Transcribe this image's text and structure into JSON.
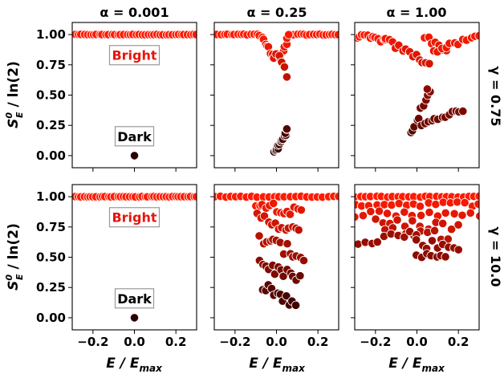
{
  "figure": {
    "column_titles": [
      "α = 0.001",
      "α = 0.25",
      "α = 1.00"
    ],
    "row_titles": [
      "γ = 0.75",
      "γ = 10.0"
    ],
    "ylabel_main": "S",
    "ylabel_sup": "0",
    "ylabel_sub": "E",
    "ylabel_tail": " / ln(2)",
    "xlabel_main": "E / E",
    "xlabel_sub": "max"
  },
  "colors": {
    "bright_text": "#e8140b",
    "dark_text": "#000000",
    "marker_bright": "#ff1a00",
    "marker_dark": "#2a0000",
    "marker_edge": "#ffffff"
  },
  "annotations": {
    "bright": "Bright",
    "dark": "Dark"
  },
  "chart_data": [
    {
      "type": "scatter",
      "row": 0,
      "col": 0,
      "title": "α = 0.001",
      "xlim": [
        -0.3,
        0.3
      ],
      "ylim": [
        -0.1,
        1.1
      ],
      "xticks": [
        -0.2,
        0.0,
        0.2
      ],
      "yticks": [
        0.0,
        0.25,
        0.5,
        0.75,
        1.0
      ],
      "xticklabels": [
        "−0.2",
        "0.0",
        "0.2"
      ],
      "yticklabels": [
        "0.00",
        "0.25",
        "0.50",
        "0.75",
        "1.00"
      ],
      "show_xticklabels": false,
      "show_yticklabels": true,
      "bands": [
        {
          "x": [
            -0.3,
            0.3
          ],
          "y": [
            1.0,
            1.0
          ],
          "count": 42,
          "spread": 0.002,
          "c": [
            1.0,
            1.0
          ]
        }
      ],
      "points": [
        {
          "x": 0.0,
          "y": 0.0,
          "c": 0.0
        }
      ],
      "labels_text": {
        "bright": {
          "x": 0.0,
          "y": 0.83
        },
        "dark": {
          "x": 0.0,
          "y": 0.16
        }
      }
    },
    {
      "type": "scatter",
      "row": 0,
      "col": 1,
      "title": "α = 0.25",
      "xlim": [
        -0.3,
        0.3
      ],
      "ylim": [
        -0.1,
        1.1
      ],
      "xticks": [
        -0.2,
        0.0,
        0.2
      ],
      "yticks": [
        0.0,
        0.25,
        0.5,
        0.75,
        1.0
      ],
      "xticklabels": [
        "−0.2",
        "0.0",
        "0.2"
      ],
      "yticklabels": [
        "0.00",
        "0.25",
        "0.50",
        "0.75",
        "1.00"
      ],
      "show_xticklabels": false,
      "show_yticklabels": false,
      "bands": [
        {
          "x": [
            -0.3,
            -0.09
          ],
          "y": [
            1.0,
            1.0
          ],
          "count": 14,
          "spread": 0.004,
          "c": [
            1.0,
            1.0
          ]
        },
        {
          "x": [
            0.07,
            0.3
          ],
          "y": [
            1.0,
            1.0
          ],
          "count": 16,
          "spread": 0.004,
          "c": [
            1.0,
            1.0
          ]
        },
        {
          "x": [
            -0.08,
            -0.01
          ],
          "y": [
            0.99,
            0.82
          ],
          "count": 9,
          "spread": 0.02,
          "c": [
            0.98,
            0.85
          ]
        },
        {
          "x": [
            0.02,
            0.06
          ],
          "y": [
            0.82,
            0.98
          ],
          "count": 7,
          "spread": 0.02,
          "c": [
            0.85,
            0.98
          ]
        },
        {
          "x": [
            0.0,
            0.04
          ],
          "y": [
            0.85,
            0.72
          ],
          "count": 4,
          "spread": 0.02,
          "c": [
            0.85,
            0.75
          ]
        },
        {
          "x": [
            -0.01,
            0.05
          ],
          "y": [
            0.03,
            0.2
          ],
          "count": 16,
          "spread": 0.02,
          "c": [
            0.05,
            0.15
          ]
        }
      ],
      "points": [
        {
          "x": 0.05,
          "y": 0.65,
          "c": 0.7
        },
        {
          "x": 0.05,
          "y": 0.22,
          "c": 0.2
        }
      ],
      "labels_text": null
    },
    {
      "type": "scatter",
      "row": 0,
      "col": 2,
      "title": "α = 1.00",
      "xlim": [
        -0.3,
        0.3
      ],
      "ylim": [
        -0.1,
        1.1
      ],
      "xticks": [
        -0.2,
        0.0,
        0.2
      ],
      "yticks": [
        0.0,
        0.25,
        0.5,
        0.75,
        1.0
      ],
      "xticklabels": [
        "−0.2",
        "0.0",
        "0.2"
      ],
      "yticklabels": [
        "0.00",
        "0.25",
        "0.50",
        "0.75",
        "1.00"
      ],
      "show_xticklabels": false,
      "show_yticklabels": false,
      "bands": [
        {
          "x": [
            -0.29,
            -0.15
          ],
          "y": [
            0.99,
            0.95
          ],
          "count": 12,
          "spread": 0.02,
          "c": [
            0.98,
            0.95
          ]
        },
        {
          "x": [
            -0.15,
            0.06
          ],
          "y": [
            0.95,
            0.76
          ],
          "count": 14,
          "spread": 0.025,
          "c": [
            0.92,
            0.8
          ]
        },
        {
          "x": [
            0.04,
            0.14
          ],
          "y": [
            0.98,
            0.87
          ],
          "count": 7,
          "spread": 0.02,
          "c": [
            0.95,
            0.88
          ]
        },
        {
          "x": [
            0.08,
            0.3
          ],
          "y": [
            0.86,
            0.99
          ],
          "count": 12,
          "spread": 0.02,
          "c": [
            0.9,
            0.98
          ]
        },
        {
          "x": [
            -0.03,
            0.06
          ],
          "y": [
            0.18,
            0.52
          ],
          "count": 10,
          "spread": 0.025,
          "c": [
            0.2,
            0.45
          ]
        },
        {
          "x": [
            0.02,
            0.22
          ],
          "y": [
            0.26,
            0.38
          ],
          "count": 13,
          "spread": 0.015,
          "c": [
            0.3,
            0.38
          ]
        }
      ],
      "points": [
        {
          "x": 0.05,
          "y": 0.55,
          "c": 0.45
        }
      ],
      "labels_text": null
    },
    {
      "type": "scatter",
      "row": 1,
      "col": 0,
      "title": "",
      "xlim": [
        -0.3,
        0.3
      ],
      "ylim": [
        -0.1,
        1.1
      ],
      "xticks": [
        -0.2,
        0.0,
        0.2
      ],
      "yticks": [
        0.0,
        0.25,
        0.5,
        0.75,
        1.0
      ],
      "xticklabels": [
        "−0.2",
        "0.0",
        "0.2"
      ],
      "yticklabels": [
        "0.00",
        "0.25",
        "0.50",
        "0.75",
        "1.00"
      ],
      "show_xticklabels": true,
      "show_yticklabels": true,
      "bands": [
        {
          "x": [
            -0.3,
            0.3
          ],
          "y": [
            1.0,
            1.0
          ],
          "count": 42,
          "spread": 0.002,
          "c": [
            1.0,
            1.0
          ]
        }
      ],
      "points": [
        {
          "x": 0.0,
          "y": 0.0,
          "c": 0.0
        }
      ],
      "labels_text": {
        "bright": {
          "x": 0.0,
          "y": 0.83
        },
        "dark": {
          "x": 0.0,
          "y": 0.16
        }
      }
    },
    {
      "type": "scatter",
      "row": 1,
      "col": 1,
      "title": "",
      "xlim": [
        -0.3,
        0.3
      ],
      "ylim": [
        -0.1,
        1.1
      ],
      "xticks": [
        -0.2,
        0.0,
        0.2
      ],
      "yticks": [
        0.0,
        0.25,
        0.5,
        0.75,
        1.0
      ],
      "xticklabels": [
        "−0.2",
        "0.0",
        "0.2"
      ],
      "yticklabels": [
        "0.00",
        "0.25",
        "0.50",
        "0.75",
        "1.00"
      ],
      "show_xticklabels": true,
      "show_yticklabels": false,
      "bands": [
        {
          "x": [
            -0.3,
            0.3
          ],
          "y": [
            1.0,
            1.0
          ],
          "count": 24,
          "spread": 0.004,
          "c": [
            1.0,
            1.0
          ]
        },
        {
          "x": [
            -0.1,
            0.12
          ],
          "y": [
            0.96,
            0.86
          ],
          "count": 14,
          "spread": 0.04,
          "c": [
            0.95,
            0.85
          ]
        },
        {
          "x": [
            -0.09,
            0.11
          ],
          "y": [
            0.84,
            0.7
          ],
          "count": 13,
          "spread": 0.04,
          "c": [
            0.82,
            0.7
          ]
        },
        {
          "x": [
            -0.08,
            0.13
          ],
          "y": [
            0.66,
            0.5
          ],
          "count": 14,
          "spread": 0.05,
          "c": [
            0.66,
            0.5
          ]
        },
        {
          "x": [
            -0.08,
            0.11
          ],
          "y": [
            0.46,
            0.3
          ],
          "count": 14,
          "spread": 0.05,
          "c": [
            0.45,
            0.3
          ]
        },
        {
          "x": [
            -0.07,
            0.09
          ],
          "y": [
            0.28,
            0.08
          ],
          "count": 12,
          "spread": 0.05,
          "c": [
            0.25,
            0.1
          ]
        }
      ],
      "points": [],
      "labels_text": null
    },
    {
      "type": "scatter",
      "row": 1,
      "col": 2,
      "title": "",
      "xlim": [
        -0.3,
        0.3
      ],
      "ylim": [
        -0.1,
        1.1
      ],
      "xticks": [
        -0.2,
        0.0,
        0.2
      ],
      "yticks": [
        0.0,
        0.25,
        0.5,
        0.75,
        1.0
      ],
      "xticklabels": [
        "−0.2",
        "0.0",
        "0.2"
      ],
      "yticklabels": [
        "0.00",
        "0.25",
        "0.50",
        "0.75",
        "1.00"
      ],
      "show_xticklabels": true,
      "show_yticklabels": false,
      "bands": [
        {
          "x": [
            -0.3,
            0.3
          ],
          "y": [
            1.0,
            1.0
          ],
          "count": 24,
          "spread": 0.004,
          "c": [
            1.0,
            1.0
          ]
        },
        {
          "x": [
            -0.3,
            0.3
          ],
          "y": [
            0.94,
            0.94
          ],
          "count": 18,
          "spread": 0.02,
          "c": [
            0.95,
            0.95
          ]
        },
        {
          "x": [
            -0.3,
            0.3
          ],
          "y": [
            0.86,
            0.86
          ],
          "count": 16,
          "spread": 0.03,
          "c": [
            0.88,
            0.88
          ]
        },
        {
          "x": [
            -0.2,
            0.2
          ],
          "y": [
            0.78,
            0.76
          ],
          "count": 12,
          "spread": 0.04,
          "c": [
            0.78,
            0.78
          ]
        },
        {
          "x": [
            -0.15,
            0.15
          ],
          "y": [
            0.72,
            0.68
          ],
          "count": 10,
          "spread": 0.04,
          "c": [
            0.7,
            0.68
          ]
        },
        {
          "x": [
            -0.28,
            0.0
          ],
          "y": [
            0.64,
            0.7
          ],
          "count": 10,
          "spread": 0.04,
          "c": [
            0.5,
            0.55
          ]
        },
        {
          "x": [
            0.0,
            0.2
          ],
          "y": [
            0.62,
            0.58
          ],
          "count": 9,
          "spread": 0.04,
          "c": [
            0.5,
            0.5
          ]
        },
        {
          "x": [
            0.0,
            0.14
          ],
          "y": [
            0.52,
            0.5
          ],
          "count": 7,
          "spread": 0.02,
          "c": [
            0.45,
            0.45
          ]
        }
      ],
      "points": [],
      "labels_text": null
    }
  ]
}
